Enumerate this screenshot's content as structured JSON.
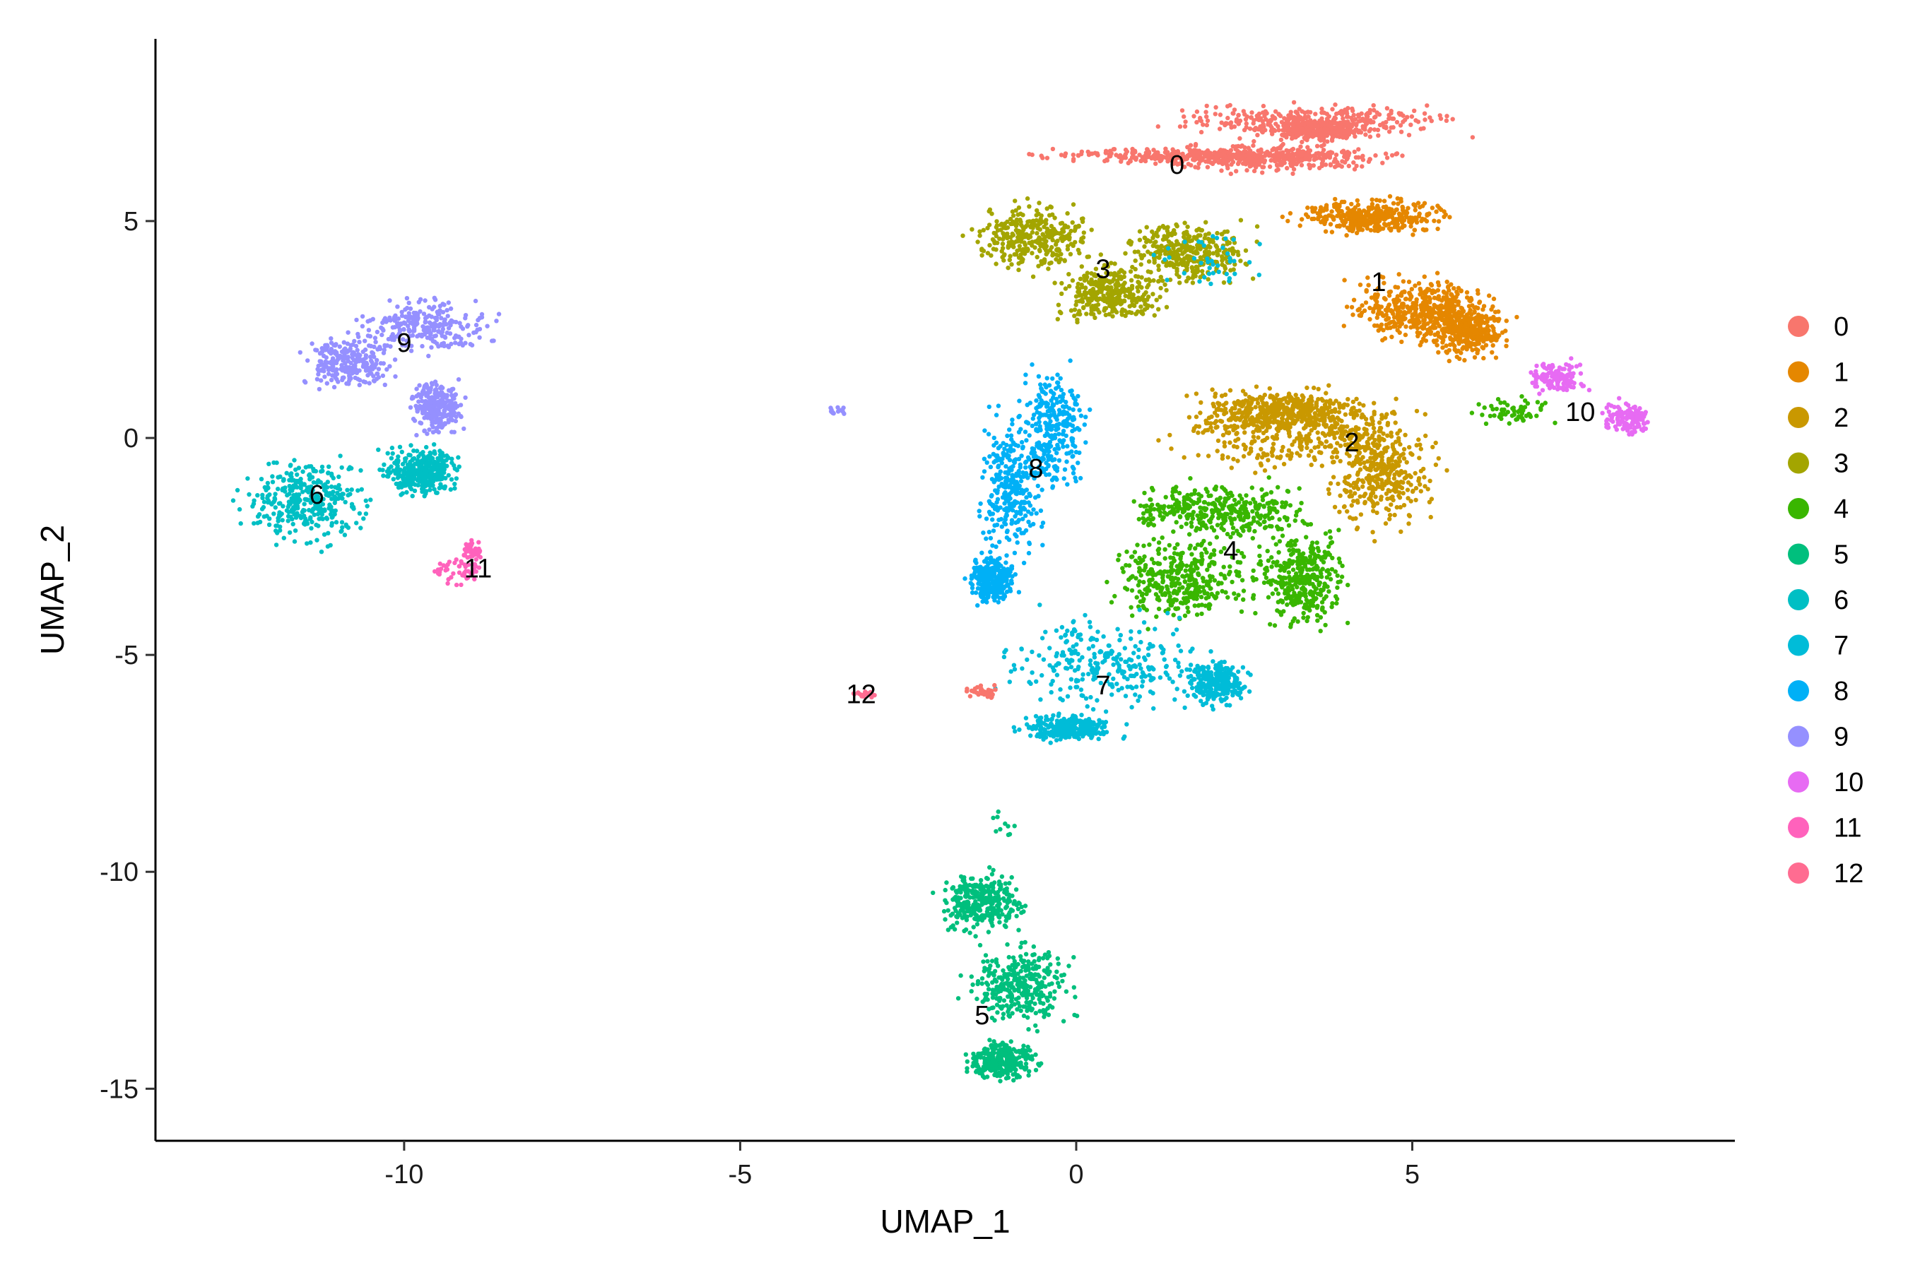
{
  "chart_data": {
    "type": "scatter",
    "title": "",
    "xlabel": "UMAP_1",
    "ylabel": "UMAP_2",
    "xlim": [
      -13.7,
      9.8
    ],
    "ylim": [
      -16.2,
      9.2
    ],
    "x_ticks": [
      -10,
      -5,
      0,
      5
    ],
    "y_ticks": [
      -15,
      -10,
      -5,
      0,
      5
    ],
    "x_tick_labels": [
      "-10",
      "-5",
      "0",
      "5"
    ],
    "y_tick_labels": [
      "-15",
      "-10",
      "-5",
      "0",
      "5"
    ],
    "grid": false,
    "legend_position": "right",
    "clusters": [
      {
        "name": "0",
        "color": "#F8766D",
        "label_pos": [
          1.5,
          6.3
        ],
        "n_points": 1300,
        "regions": [
          [
            -1.5,
            5.3,
            6.7,
            6.3
          ],
          [
            1.0,
            6.1,
            7.8,
            6.8
          ],
          [
            2.6,
            4.6,
            7.4,
            6.8
          ],
          [
            0.2,
            5.3,
            6.9,
            6.0
          ]
        ]
      },
      {
        "name": "1",
        "color": "#E58700",
        "label_pos": [
          4.5,
          3.6
        ],
        "n_points": 1150,
        "regions": [
          [
            3.0,
            5.8,
            5.6,
            4.6
          ],
          [
            3.8,
            6.3,
            2.0,
            4.0
          ],
          [
            5.0,
            6.6,
            1.6,
            3.5
          ]
        ]
      },
      {
        "name": "2",
        "color": "#C99800",
        "label_pos": [
          4.1,
          -0.1
        ],
        "n_points": 1100,
        "regions": [
          [
            1.0,
            5.6,
            -1.2,
            1.5
          ],
          [
            3.5,
            5.6,
            -2.5,
            1.0
          ],
          [
            1.5,
            4.5,
            0.0,
            1.2
          ]
        ]
      },
      {
        "name": "3",
        "color": "#A3A500",
        "label_pos": [
          0.4,
          3.9
        ],
        "n_points": 1000,
        "regions": [
          [
            -1.8,
            0.5,
            3.6,
            5.7
          ],
          [
            -0.5,
            1.5,
            2.5,
            4.2
          ],
          [
            0.5,
            2.9,
            3.3,
            5.2
          ]
        ]
      },
      {
        "name": "4",
        "color": "#39B600",
        "label_pos": [
          2.3,
          -2.6
        ],
        "n_points": 1100,
        "regions": [
          [
            0.3,
            4.0,
            -2.5,
            -0.8
          ],
          [
            0.3,
            2.8,
            -4.5,
            -2.0
          ],
          [
            2.5,
            4.3,
            -4.7,
            -1.8
          ]
        ]
      },
      {
        "name": "5",
        "color": "#00BF7D",
        "label_pos": [
          -1.4,
          -13.3
        ],
        "n_points": 950,
        "regions": [
          [
            -2.2,
            -0.6,
            -11.6,
            -9.8
          ],
          [
            -1.9,
            0.2,
            -13.8,
            -11.4
          ],
          [
            -1.8,
            -0.4,
            -14.9,
            -13.8
          ]
        ]
      },
      {
        "name": "6",
        "color": "#00BFC4",
        "label_pos": [
          -11.3,
          -1.3
        ],
        "n_points": 700,
        "regions": [
          [
            -12.6,
            -10.3,
            -2.7,
            -0.2
          ],
          [
            -10.5,
            -9.0,
            -1.5,
            0.0
          ]
        ]
      },
      {
        "name": "7",
        "color": "#00BCD8",
        "label_pos": [
          0.4,
          -5.7
        ],
        "n_points": 850,
        "regions": [
          [
            -1.5,
            2.5,
            -6.6,
            -3.7
          ],
          [
            -1.0,
            0.8,
            -7.1,
            -6.3
          ],
          [
            1.5,
            2.7,
            -6.3,
            -5.0
          ]
        ]
      },
      {
        "name": "8",
        "color": "#00B0F6",
        "label_pos": [
          -0.6,
          -0.7
        ],
        "n_points": 850,
        "regions": [
          [
            -1.6,
            -0.3,
            -3.3,
            1.0
          ],
          [
            -1.0,
            0.3,
            -1.6,
            2.0
          ],
          [
            -1.7,
            -0.8,
            -4.0,
            -2.5
          ]
        ]
      },
      {
        "name": "9",
        "color": "#9590FF",
        "label_pos": [
          -10.0,
          2.2
        ],
        "n_points": 750,
        "regions": [
          [
            -11.0,
            -8.3,
            1.8,
            3.4
          ],
          [
            -11.7,
            -10.0,
            0.9,
            2.6
          ],
          [
            -10.0,
            -9.0,
            -0.1,
            1.5
          ]
        ]
      },
      {
        "name": "10",
        "color": "#E76BF3",
        "label_pos": [
          7.5,
          0.6
        ],
        "n_points": 260,
        "regions": [
          [
            7.7,
            8.7,
            -0.1,
            1.0
          ],
          [
            6.6,
            7.7,
            0.9,
            1.9
          ]
        ]
      },
      {
        "name": "11",
        "color": "#FF62BC",
        "label_pos": [
          -8.9,
          -3.0
        ],
        "n_points": 90,
        "regions": [
          [
            -9.8,
            -8.6,
            -3.5,
            -2.6
          ],
          [
            -9.2,
            -8.8,
            -3.0,
            -2.2
          ]
        ]
      },
      {
        "name": "12",
        "color": "#FF6C91",
        "label_pos": [
          -3.2,
          -5.9
        ],
        "n_points": 20,
        "regions": [
          [
            -3.4,
            -2.9,
            -6.0,
            -5.8
          ]
        ]
      }
    ],
    "extra_points": [
      {
        "cluster": "0",
        "regions": [
          [
            -1.8,
            -1.0,
            -6.1,
            -5.6
          ]
        ],
        "n_points": 35
      },
      {
        "cluster": "9",
        "regions": [
          [
            -3.8,
            -3.4,
            0.5,
            0.8
          ]
        ],
        "n_points": 15
      },
      {
        "cluster": "4",
        "regions": [
          [
            5.8,
            7.2,
            0.2,
            1.0
          ]
        ],
        "n_points": 60
      },
      {
        "cluster": "7",
        "regions": [
          [
            0.8,
            3.0,
            3.2,
            5.0
          ]
        ],
        "n_points": 40
      },
      {
        "cluster": "5",
        "regions": [
          [
            -1.3,
            -0.8,
            -9.5,
            -8.4
          ]
        ],
        "n_points": 10
      }
    ]
  }
}
